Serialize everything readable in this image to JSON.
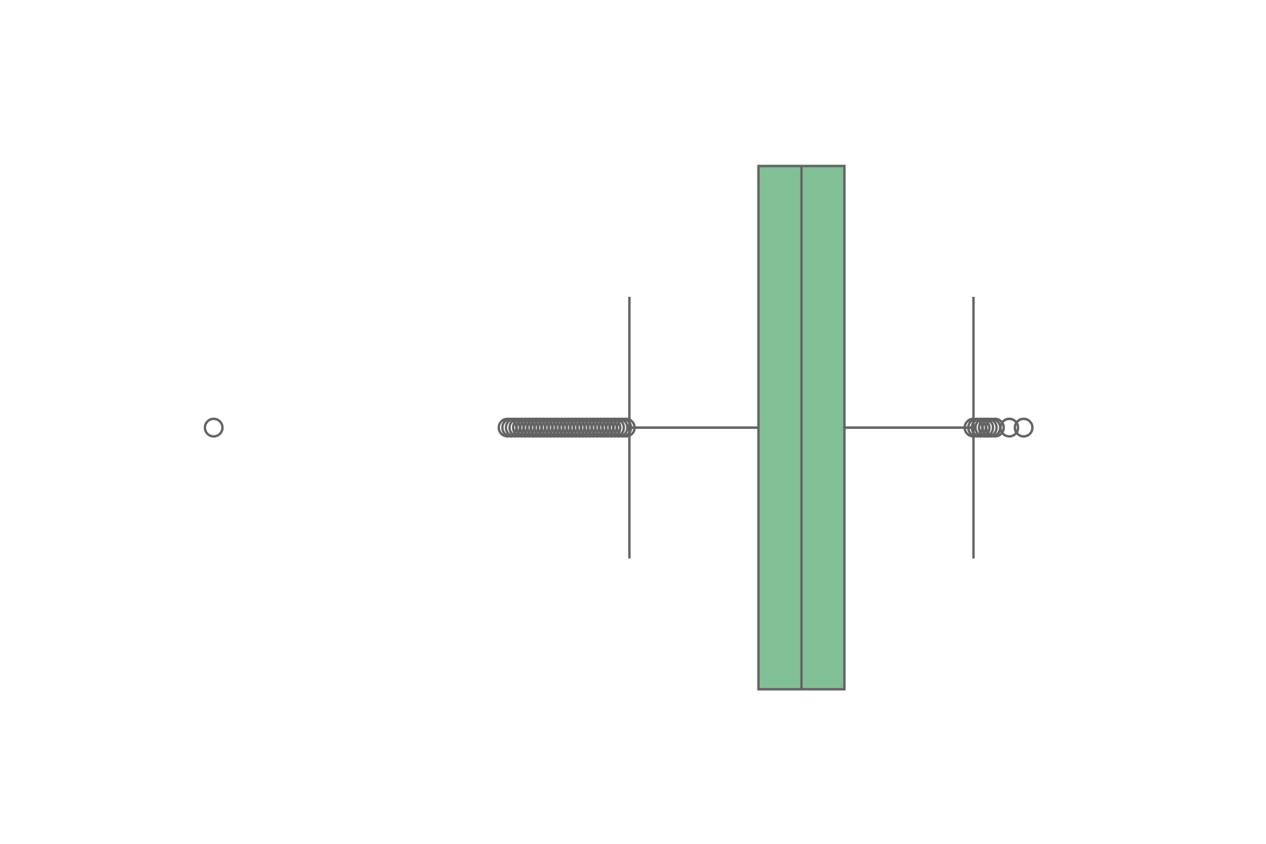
{
  "chart_data": {
    "type": "boxplot",
    "orientation": "horizontal",
    "title": "",
    "xlabel": "",
    "ylabel": "",
    "axes_visible": false,
    "grid": false,
    "xlim": [
      -0.76,
      0.81
    ],
    "box": {
      "q1": 0.2,
      "median": 0.26,
      "q3": 0.32,
      "whisker_low": 0.02,
      "whisker_high": 0.5,
      "fill_color": "#81bf95",
      "line_color": "#636363"
    },
    "outliers_low": [
      -0.56,
      -0.15,
      -0.145,
      -0.14,
      -0.135,
      -0.13,
      -0.125,
      -0.12,
      -0.115,
      -0.11,
      -0.105,
      -0.1,
      -0.095,
      -0.09,
      -0.085,
      -0.08,
      -0.075,
      -0.07,
      -0.065,
      -0.06,
      -0.055,
      -0.05,
      -0.045,
      -0.04,
      -0.035,
      -0.03,
      -0.025,
      -0.02,
      -0.015,
      -0.01,
      -0.005,
      0.0,
      0.005,
      0.01,
      0.015
    ],
    "outliers_high": [
      0.5,
      0.505,
      0.51,
      0.515,
      0.52,
      0.525,
      0.53,
      0.55,
      0.57
    ]
  }
}
